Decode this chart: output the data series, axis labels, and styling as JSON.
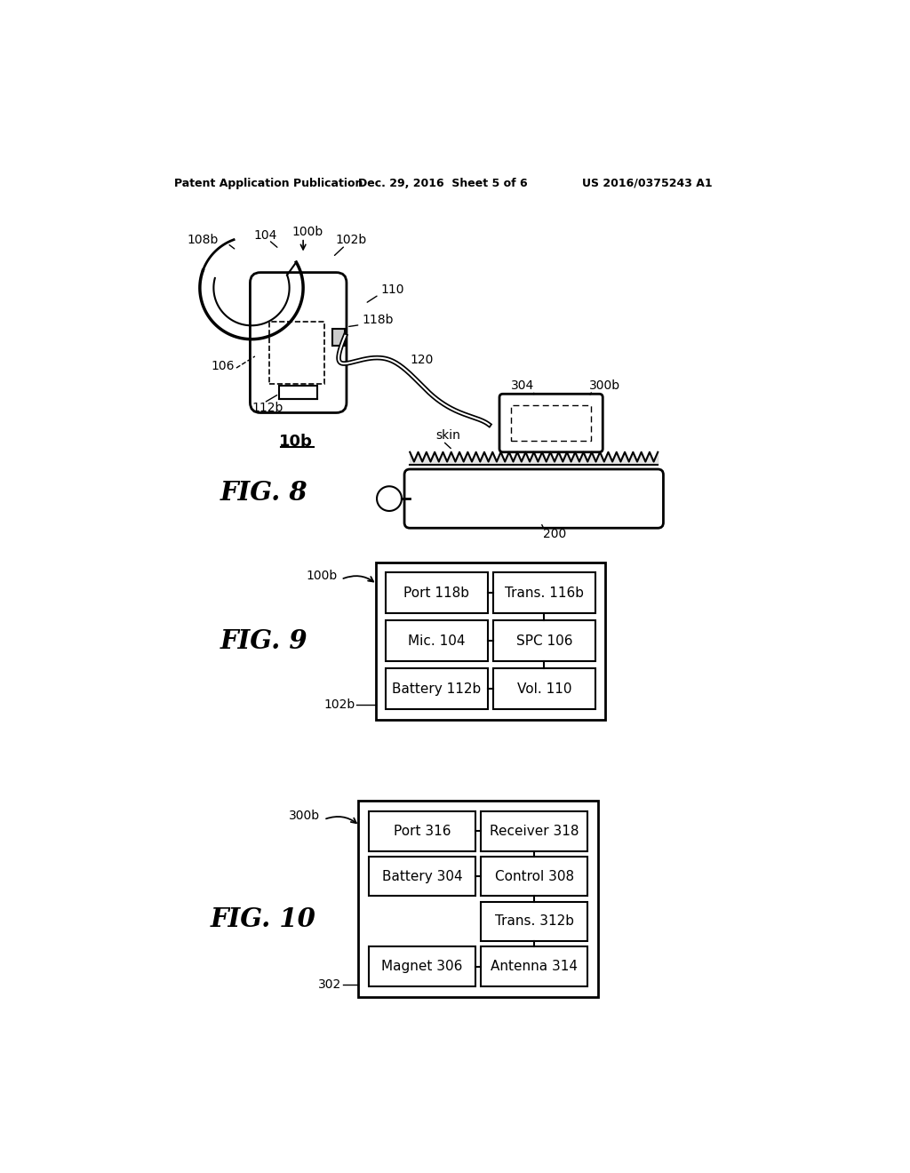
{
  "bg_color": "#ffffff",
  "header_left": "Patent Application Publication",
  "header_mid": "Dec. 29, 2016  Sheet 5 of 6",
  "header_right": "US 2016/0375243 A1",
  "fig8_label": "FIG. 8",
  "fig9_label": "FIG. 9",
  "fig10_label": "FIG. 10",
  "fig8_ref": "10b",
  "fig9_ref": "100b",
  "fig10_ref": "300b",
  "fig10_sub": "302",
  "fig9_sub": "102b",
  "fig9_boxes": [
    [
      "Port 118b",
      "Trans. 116b"
    ],
    [
      "Mic. 104",
      "SPC 106"
    ],
    [
      "Battery 112b",
      "Vol. 110"
    ]
  ],
  "fig10_boxes_left": [
    "Port 316",
    "Battery 304",
    "",
    "Magnet 306"
  ],
  "fig10_boxes_right": [
    "Receiver 318",
    "Control 308",
    "Trans. 312b",
    "Antenna 314"
  ],
  "label_200": "200",
  "label_skin": "skin",
  "label_304": "304",
  "label_300b": "300b",
  "label_110": "110",
  "label_118b": "118b",
  "label_120": "120",
  "label_106": "106",
  "label_112b": "112b",
  "label_104": "104",
  "label_100b": "100b",
  "label_108b": "108b",
  "label_102b_fig8": "102b"
}
